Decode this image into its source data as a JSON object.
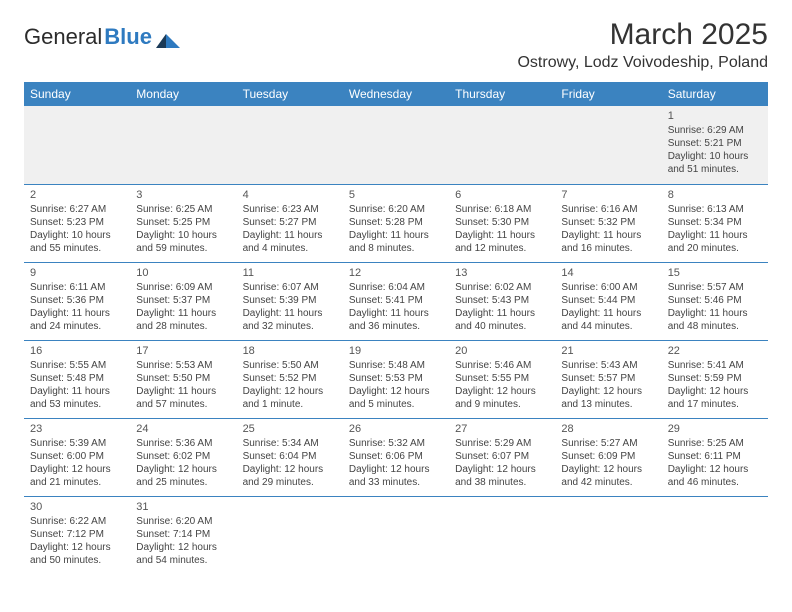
{
  "logo": {
    "part1": "General",
    "part2": "Blue"
  },
  "header": {
    "month_title": "March 2025",
    "location": "Ostrowy, Lodz Voivodeship, Poland"
  },
  "colors": {
    "header_bg": "#3b83c0",
    "header_text": "#ffffff",
    "rule": "#3b83c0",
    "shade": "#f0f0f0"
  },
  "day_headers": [
    "Sunday",
    "Monday",
    "Tuesday",
    "Wednesday",
    "Thursday",
    "Friday",
    "Saturday"
  ],
  "weeks": [
    [
      null,
      null,
      null,
      null,
      null,
      null,
      {
        "n": "1",
        "sunrise": "Sunrise: 6:29 AM",
        "sunset": "Sunset: 5:21 PM",
        "day1": "Daylight: 10 hours",
        "day2": "and 51 minutes."
      }
    ],
    [
      {
        "n": "2",
        "sunrise": "Sunrise: 6:27 AM",
        "sunset": "Sunset: 5:23 PM",
        "day1": "Daylight: 10 hours",
        "day2": "and 55 minutes."
      },
      {
        "n": "3",
        "sunrise": "Sunrise: 6:25 AM",
        "sunset": "Sunset: 5:25 PM",
        "day1": "Daylight: 10 hours",
        "day2": "and 59 minutes."
      },
      {
        "n": "4",
        "sunrise": "Sunrise: 6:23 AM",
        "sunset": "Sunset: 5:27 PM",
        "day1": "Daylight: 11 hours",
        "day2": "and 4 minutes."
      },
      {
        "n": "5",
        "sunrise": "Sunrise: 6:20 AM",
        "sunset": "Sunset: 5:28 PM",
        "day1": "Daylight: 11 hours",
        "day2": "and 8 minutes."
      },
      {
        "n": "6",
        "sunrise": "Sunrise: 6:18 AM",
        "sunset": "Sunset: 5:30 PM",
        "day1": "Daylight: 11 hours",
        "day2": "and 12 minutes."
      },
      {
        "n": "7",
        "sunrise": "Sunrise: 6:16 AM",
        "sunset": "Sunset: 5:32 PM",
        "day1": "Daylight: 11 hours",
        "day2": "and 16 minutes."
      },
      {
        "n": "8",
        "sunrise": "Sunrise: 6:13 AM",
        "sunset": "Sunset: 5:34 PM",
        "day1": "Daylight: 11 hours",
        "day2": "and 20 minutes."
      }
    ],
    [
      {
        "n": "9",
        "sunrise": "Sunrise: 6:11 AM",
        "sunset": "Sunset: 5:36 PM",
        "day1": "Daylight: 11 hours",
        "day2": "and 24 minutes."
      },
      {
        "n": "10",
        "sunrise": "Sunrise: 6:09 AM",
        "sunset": "Sunset: 5:37 PM",
        "day1": "Daylight: 11 hours",
        "day2": "and 28 minutes."
      },
      {
        "n": "11",
        "sunrise": "Sunrise: 6:07 AM",
        "sunset": "Sunset: 5:39 PM",
        "day1": "Daylight: 11 hours",
        "day2": "and 32 minutes."
      },
      {
        "n": "12",
        "sunrise": "Sunrise: 6:04 AM",
        "sunset": "Sunset: 5:41 PM",
        "day1": "Daylight: 11 hours",
        "day2": "and 36 minutes."
      },
      {
        "n": "13",
        "sunrise": "Sunrise: 6:02 AM",
        "sunset": "Sunset: 5:43 PM",
        "day1": "Daylight: 11 hours",
        "day2": "and 40 minutes."
      },
      {
        "n": "14",
        "sunrise": "Sunrise: 6:00 AM",
        "sunset": "Sunset: 5:44 PM",
        "day1": "Daylight: 11 hours",
        "day2": "and 44 minutes."
      },
      {
        "n": "15",
        "sunrise": "Sunrise: 5:57 AM",
        "sunset": "Sunset: 5:46 PM",
        "day1": "Daylight: 11 hours",
        "day2": "and 48 minutes."
      }
    ],
    [
      {
        "n": "16",
        "sunrise": "Sunrise: 5:55 AM",
        "sunset": "Sunset: 5:48 PM",
        "day1": "Daylight: 11 hours",
        "day2": "and 53 minutes."
      },
      {
        "n": "17",
        "sunrise": "Sunrise: 5:53 AM",
        "sunset": "Sunset: 5:50 PM",
        "day1": "Daylight: 11 hours",
        "day2": "and 57 minutes."
      },
      {
        "n": "18",
        "sunrise": "Sunrise: 5:50 AM",
        "sunset": "Sunset: 5:52 PM",
        "day1": "Daylight: 12 hours",
        "day2": "and 1 minute."
      },
      {
        "n": "19",
        "sunrise": "Sunrise: 5:48 AM",
        "sunset": "Sunset: 5:53 PM",
        "day1": "Daylight: 12 hours",
        "day2": "and 5 minutes."
      },
      {
        "n": "20",
        "sunrise": "Sunrise: 5:46 AM",
        "sunset": "Sunset: 5:55 PM",
        "day1": "Daylight: 12 hours",
        "day2": "and 9 minutes."
      },
      {
        "n": "21",
        "sunrise": "Sunrise: 5:43 AM",
        "sunset": "Sunset: 5:57 PM",
        "day1": "Daylight: 12 hours",
        "day2": "and 13 minutes."
      },
      {
        "n": "22",
        "sunrise": "Sunrise: 5:41 AM",
        "sunset": "Sunset: 5:59 PM",
        "day1": "Daylight: 12 hours",
        "day2": "and 17 minutes."
      }
    ],
    [
      {
        "n": "23",
        "sunrise": "Sunrise: 5:39 AM",
        "sunset": "Sunset: 6:00 PM",
        "day1": "Daylight: 12 hours",
        "day2": "and 21 minutes."
      },
      {
        "n": "24",
        "sunrise": "Sunrise: 5:36 AM",
        "sunset": "Sunset: 6:02 PM",
        "day1": "Daylight: 12 hours",
        "day2": "and 25 minutes."
      },
      {
        "n": "25",
        "sunrise": "Sunrise: 5:34 AM",
        "sunset": "Sunset: 6:04 PM",
        "day1": "Daylight: 12 hours",
        "day2": "and 29 minutes."
      },
      {
        "n": "26",
        "sunrise": "Sunrise: 5:32 AM",
        "sunset": "Sunset: 6:06 PM",
        "day1": "Daylight: 12 hours",
        "day2": "and 33 minutes."
      },
      {
        "n": "27",
        "sunrise": "Sunrise: 5:29 AM",
        "sunset": "Sunset: 6:07 PM",
        "day1": "Daylight: 12 hours",
        "day2": "and 38 minutes."
      },
      {
        "n": "28",
        "sunrise": "Sunrise: 5:27 AM",
        "sunset": "Sunset: 6:09 PM",
        "day1": "Daylight: 12 hours",
        "day2": "and 42 minutes."
      },
      {
        "n": "29",
        "sunrise": "Sunrise: 5:25 AM",
        "sunset": "Sunset: 6:11 PM",
        "day1": "Daylight: 12 hours",
        "day2": "and 46 minutes."
      }
    ],
    [
      {
        "n": "30",
        "sunrise": "Sunrise: 6:22 AM",
        "sunset": "Sunset: 7:12 PM",
        "day1": "Daylight: 12 hours",
        "day2": "and 50 minutes."
      },
      {
        "n": "31",
        "sunrise": "Sunrise: 6:20 AM",
        "sunset": "Sunset: 7:14 PM",
        "day1": "Daylight: 12 hours",
        "day2": "and 54 minutes."
      },
      null,
      null,
      null,
      null,
      null
    ]
  ]
}
